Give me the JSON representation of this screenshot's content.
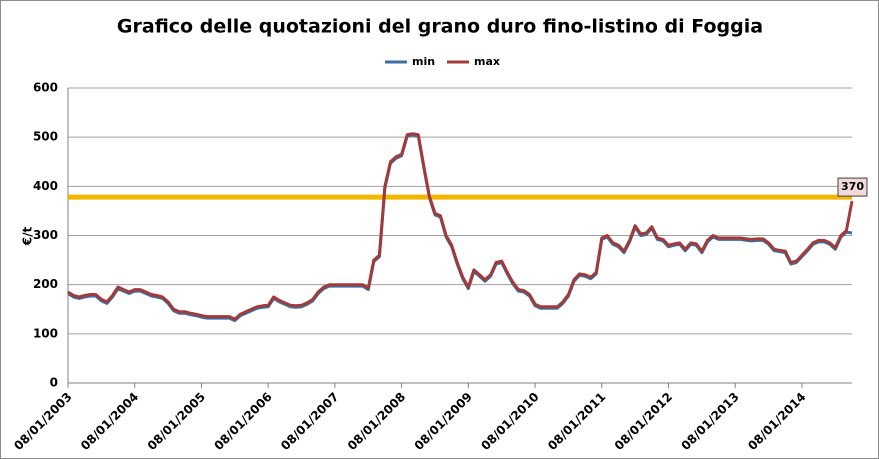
{
  "chart_data": {
    "type": "line",
    "title": "Grafico delle quotazioni del grano duro fino-listino di Foggia",
    "y_label": "€/t",
    "categories": [
      "08/01/2003",
      null,
      null,
      null,
      null,
      null,
      null,
      null,
      null,
      null,
      null,
      null,
      "08/01/2004",
      null,
      null,
      null,
      null,
      null,
      null,
      null,
      null,
      null,
      null,
      null,
      "08/01/2005",
      null,
      null,
      null,
      null,
      null,
      null,
      null,
      null,
      null,
      null,
      null,
      "08/01/2006",
      null,
      null,
      null,
      null,
      null,
      null,
      null,
      null,
      null,
      null,
      null,
      "08/01/2007",
      null,
      null,
      null,
      null,
      null,
      null,
      null,
      null,
      null,
      null,
      null,
      "08/01/2008",
      null,
      null,
      null,
      null,
      null,
      null,
      null,
      null,
      null,
      null,
      null,
      "08/01/2009",
      null,
      null,
      null,
      null,
      null,
      null,
      null,
      null,
      null,
      null,
      null,
      "08/01/2010",
      null,
      null,
      null,
      null,
      null,
      null,
      null,
      null,
      null,
      null,
      null,
      "08/01/2011",
      null,
      null,
      null,
      null,
      null,
      null,
      null,
      null,
      null,
      null,
      null,
      "08/01/2012",
      null,
      null,
      null,
      null,
      null,
      null,
      null,
      null,
      null,
      null,
      null,
      "08/01/2013",
      null,
      null,
      null,
      null,
      null,
      null,
      null,
      null,
      null,
      null,
      null,
      "08/01/2014",
      null,
      null,
      null,
      null,
      null,
      null,
      null,
      null,
      null
    ],
    "series": [
      {
        "name": "min",
        "color": "#3b6fa6",
        "values": [
          182,
          175,
          172,
          175,
          177,
          177,
          167,
          162,
          175,
          192,
          187,
          182,
          187,
          187,
          182,
          177,
          175,
          172,
          162,
          147,
          142,
          142,
          139,
          137,
          134,
          132,
          132,
          132,
          132,
          132,
          127,
          137,
          142,
          147,
          152,
          154,
          155,
          172,
          165,
          160,
          155,
          154,
          155,
          160,
          167,
          182,
          192,
          197,
          197,
          197,
          197,
          197,
          197,
          197,
          190,
          247,
          257,
          397,
          447,
          457,
          462,
          502,
          504,
          502,
          437,
          377,
          342,
          337,
          297,
          277,
          242,
          212,
          192,
          227,
          217,
          207,
          217,
          242,
          245,
          222,
          202,
          187,
          185,
          177,
          157,
          152,
          152,
          152,
          152,
          162,
          177,
          207,
          219,
          217,
          212,
          222,
          292,
          297,
          282,
          277,
          265,
          287,
          317,
          300,
          302,
          315,
          292,
          289,
          277,
          280,
          282,
          269,
          282,
          280,
          265,
          287,
          297,
          292,
          292,
          292,
          292,
          292,
          290,
          289,
          290,
          290,
          282,
          269,
          267,
          265,
          242,
          245,
          257,
          269,
          282,
          287,
          287,
          282,
          272,
          297,
          307,
          305
        ]
      },
      {
        "name": "max",
        "color": "#a33a3a",
        "values": [
          185,
          178,
          175,
          178,
          180,
          180,
          170,
          165,
          178,
          195,
          190,
          185,
          190,
          190,
          185,
          180,
          178,
          175,
          165,
          150,
          145,
          145,
          142,
          140,
          137,
          135,
          135,
          135,
          135,
          135,
          130,
          140,
          145,
          150,
          155,
          157,
          158,
          175,
          168,
          163,
          158,
          157,
          158,
          163,
          170,
          185,
          195,
          200,
          200,
          200,
          200,
          200,
          200,
          200,
          193,
          250,
          260,
          400,
          450,
          460,
          465,
          505,
          507,
          505,
          440,
          380,
          345,
          340,
          300,
          280,
          245,
          215,
          195,
          230,
          220,
          210,
          220,
          245,
          248,
          225,
          205,
          190,
          188,
          180,
          160,
          155,
          155,
          155,
          155,
          165,
          180,
          210,
          222,
          220,
          215,
          225,
          295,
          300,
          285,
          280,
          268,
          290,
          320,
          303,
          305,
          318,
          295,
          292,
          280,
          283,
          285,
          272,
          285,
          283,
          268,
          290,
          300,
          295,
          295,
          295,
          295,
          295,
          293,
          292,
          293,
          293,
          285,
          272,
          270,
          268,
          245,
          248,
          260,
          272,
          285,
          290,
          290,
          285,
          275,
          300,
          310,
          370
        ]
      }
    ],
    "annotation": {
      "text": "370",
      "fill": "#f2d9d9"
    },
    "reference_line": {
      "value": 378,
      "color": "#f2b800"
    },
    "ylim": [
      0,
      600
    ],
    "yticks": [
      0,
      100,
      200,
      300,
      400,
      500,
      600
    ],
    "grid": true,
    "legend": "top"
  }
}
